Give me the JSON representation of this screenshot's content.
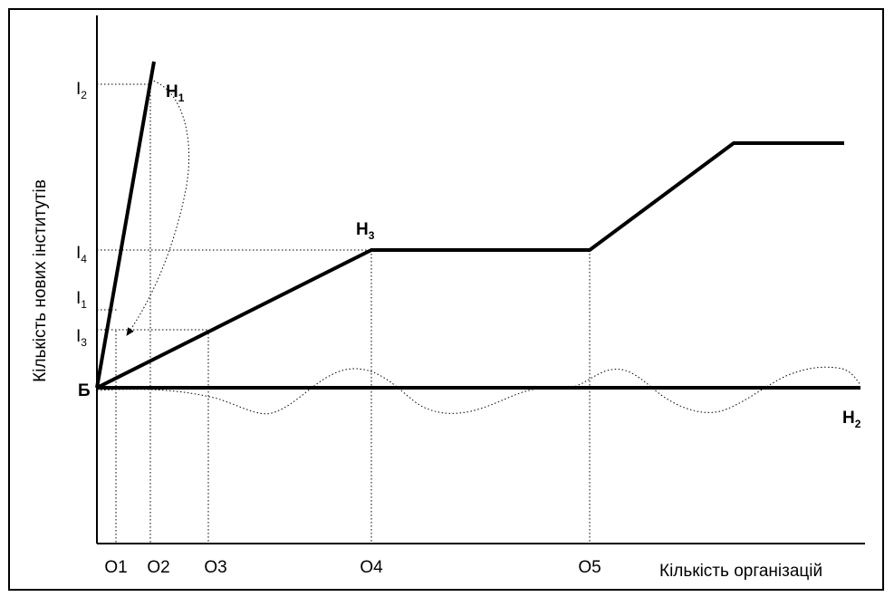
{
  "diagram": {
    "y_axis_label": "Кількість нових інститутів",
    "x_axis_label": "Кількість організацій",
    "origin_label": "Б",
    "y_ticks": [
      {
        "base": "I",
        "sub": "2"
      },
      {
        "base": "I",
        "sub": "4"
      },
      {
        "base": "I",
        "sub": "1"
      },
      {
        "base": "I",
        "sub": "3"
      }
    ],
    "x_ticks": [
      "O1",
      "O2",
      "O3",
      "O4",
      "O5"
    ],
    "curves": [
      {
        "base": "H",
        "sub": "1"
      },
      {
        "base": "H",
        "sub": "2"
      },
      {
        "base": "H",
        "sub": "3"
      }
    ]
  }
}
